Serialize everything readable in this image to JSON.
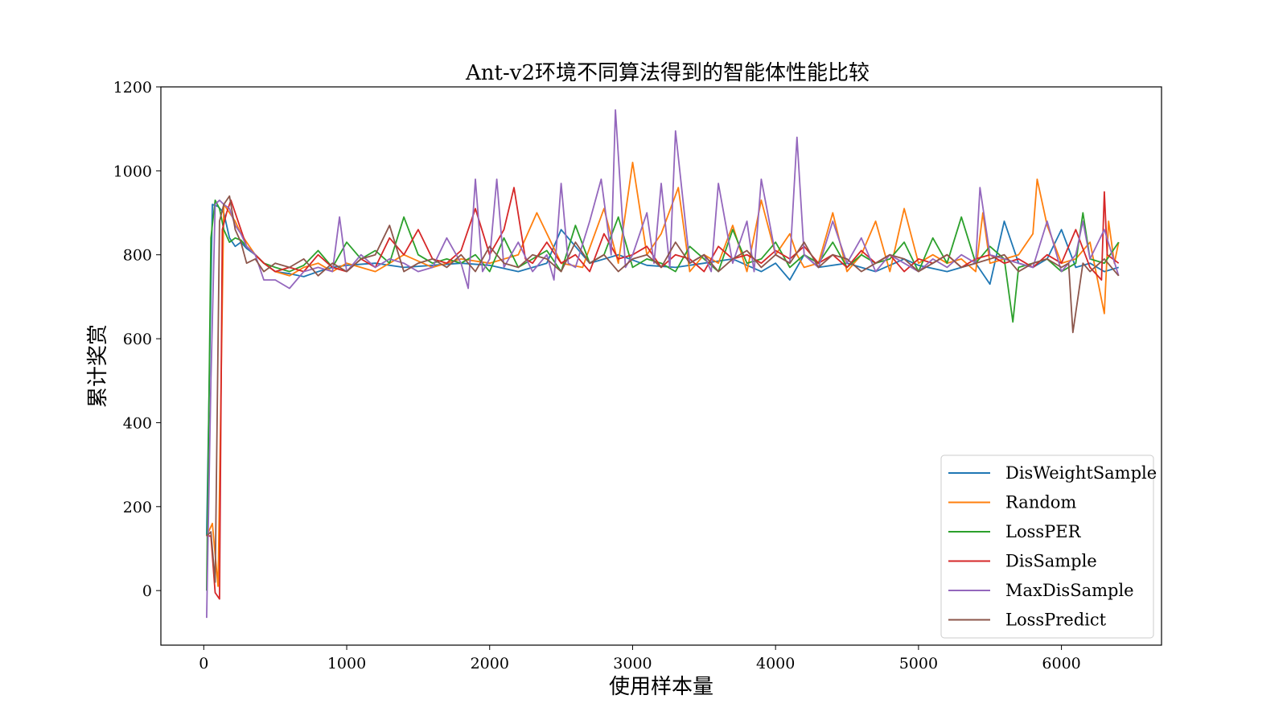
{
  "chart_data": {
    "type": "line",
    "title": "Ant-v2环境不同算法得到的智能体性能比较",
    "xlabel": "使用样本量",
    "ylabel": "累计奖赏",
    "xlim": [
      -300,
      6700
    ],
    "ylim": [
      -130,
      1200
    ],
    "xticks": [
      0,
      1000,
      2000,
      3000,
      4000,
      5000,
      6000
    ],
    "yticks": [
      0,
      200,
      400,
      600,
      800,
      1000,
      1200
    ],
    "grid": false,
    "legend_position": "lower-right",
    "colors": [
      "#1f77b4",
      "#ff7f0e",
      "#2ca02c",
      "#d62728",
      "#9467bd",
      "#8c564b"
    ],
    "series": [
      {
        "name": "DisWeightSample",
        "color": "#1f77b4",
        "x": [
          20,
          60,
          100,
          140,
          180,
          220,
          260,
          300,
          360,
          420,
          500,
          600,
          700,
          800,
          900,
          1000,
          1200,
          1400,
          1600,
          1800,
          2000,
          2200,
          2400,
          2500,
          2700,
          2900,
          3100,
          3300,
          3500,
          3700,
          3900,
          4000,
          4100,
          4200,
          4300,
          4500,
          4700,
          4900,
          5000,
          5200,
          5400,
          5500,
          5600,
          5700,
          5800,
          5900,
          6000,
          6100,
          6200,
          6300,
          6400
        ],
        "values": [
          130,
          920,
          915,
          900,
          840,
          820,
          830,
          815,
          800,
          780,
          760,
          755,
          748,
          760,
          770,
          775,
          780,
          770,
          775,
          780,
          775,
          760,
          780,
          860,
          780,
          800,
          775,
          770,
          780,
          790,
          760,
          780,
          740,
          800,
          770,
          780,
          760,
          790,
          775,
          760,
          780,
          730,
          880,
          780,
          770,
          790,
          860,
          770,
          780,
          760,
          770
        ]
      },
      {
        "name": "Random",
        "color": "#ff7f0e",
        "x": [
          20,
          60,
          100,
          140,
          180,
          220,
          260,
          300,
          360,
          420,
          500,
          600,
          700,
          800,
          900,
          1000,
          1200,
          1400,
          1600,
          1800,
          2000,
          2200,
          2330,
          2500,
          2650,
          2800,
          2900,
          3000,
          3100,
          3200,
          3320,
          3400,
          3500,
          3600,
          3700,
          3800,
          3900,
          4000,
          4100,
          4150,
          4200,
          4300,
          4400,
          4500,
          4600,
          4700,
          4800,
          4900,
          5000,
          5100,
          5200,
          5300,
          5400,
          5450,
          5500,
          5700,
          5800,
          5830,
          5900,
          6000,
          6100,
          6200,
          6300,
          6330,
          6370,
          6400
        ],
        "values": [
          130,
          160,
          10,
          920,
          900,
          880,
          850,
          830,
          800,
          780,
          760,
          750,
          770,
          780,
          760,
          780,
          760,
          800,
          770,
          790,
          780,
          800,
          900,
          780,
          770,
          910,
          780,
          1020,
          800,
          850,
          960,
          760,
          800,
          780,
          870,
          760,
          930,
          800,
          850,
          800,
          770,
          780,
          900,
          760,
          800,
          880,
          760,
          910,
          780,
          800,
          780,
          790,
          760,
          900,
          780,
          800,
          850,
          980,
          870,
          780,
          790,
          830,
          660,
          880,
          780,
          830
        ]
      },
      {
        "name": "LossPER",
        "color": "#2ca02c",
        "x": [
          20,
          50,
          80,
          110,
          140,
          180,
          220,
          260,
          300,
          360,
          420,
          500,
          600,
          700,
          800,
          900,
          1000,
          1100,
          1200,
          1300,
          1400,
          1500,
          1600,
          1700,
          1800,
          1900,
          2000,
          2100,
          2200,
          2300,
          2400,
          2500,
          2600,
          2700,
          2800,
          2900,
          3000,
          3100,
          3200,
          3300,
          3400,
          3500,
          3600,
          3700,
          3800,
          3900,
          4000,
          4100,
          4200,
          4300,
          4400,
          4500,
          4600,
          4700,
          4800,
          4900,
          5000,
          5100,
          5200,
          5300,
          5400,
          5500,
          5600,
          5660,
          5700,
          5800,
          5900,
          6000,
          6100,
          6150,
          6200,
          6300,
          6400
        ],
        "values": [
          0,
          840,
          930,
          910,
          860,
          830,
          840,
          835,
          820,
          800,
          780,
          770,
          760,
          775,
          810,
          770,
          830,
          790,
          810,
          780,
          890,
          800,
          780,
          790,
          780,
          800,
          760,
          840,
          770,
          790,
          810,
          760,
          870,
          780,
          800,
          890,
          770,
          790,
          780,
          760,
          820,
          790,
          760,
          860,
          780,
          790,
          830,
          770,
          800,
          780,
          830,
          770,
          800,
          780,
          790,
          830,
          760,
          840,
          780,
          890,
          780,
          820,
          790,
          640,
          770,
          780,
          790,
          760,
          780,
          900,
          790,
          780,
          830
        ]
      },
      {
        "name": "DisSample",
        "color": "#d62728",
        "x": [
          20,
          50,
          80,
          110,
          130,
          160,
          190,
          220,
          260,
          300,
          360,
          420,
          500,
          600,
          700,
          800,
          900,
          1000,
          1100,
          1200,
          1300,
          1400,
          1500,
          1600,
          1700,
          1800,
          1900,
          2000,
          2100,
          2170,
          2250,
          2300,
          2400,
          2500,
          2600,
          2700,
          2800,
          2900,
          3000,
          3100,
          3200,
          3300,
          3400,
          3500,
          3600,
          3700,
          3800,
          3900,
          4000,
          4100,
          4200,
          4300,
          4400,
          4500,
          4600,
          4700,
          4800,
          4900,
          5000,
          5100,
          5200,
          5300,
          5400,
          5500,
          5600,
          5700,
          5800,
          5900,
          6000,
          6100,
          6200,
          6280,
          6300,
          6320,
          6400
        ],
        "values": [
          130,
          130,
          -5,
          -20,
          860,
          900,
          930,
          900,
          860,
          820,
          800,
          780,
          760,
          770,
          760,
          800,
          770,
          760,
          790,
          770,
          840,
          800,
          860,
          790,
          780,
          810,
          910,
          800,
          860,
          960,
          790,
          780,
          830,
          780,
          800,
          760,
          850,
          790,
          800,
          820,
          770,
          800,
          790,
          760,
          820,
          790,
          800,
          780,
          810,
          790,
          820,
          780,
          800,
          770,
          810,
          780,
          800,
          760,
          790,
          780,
          800,
          770,
          790,
          800,
          780,
          790,
          770,
          800,
          780,
          860,
          770,
          740,
          950,
          800,
          780
        ]
      },
      {
        "name": "MaxDisSample",
        "color": "#9467bd",
        "x": [
          20,
          50,
          80,
          110,
          140,
          180,
          220,
          260,
          300,
          360,
          420,
          500,
          600,
          700,
          800,
          900,
          950,
          1000,
          1050,
          1100,
          1200,
          1300,
          1400,
          1500,
          1600,
          1700,
          1800,
          1850,
          1900,
          1950,
          2000,
          2050,
          2100,
          2150,
          2200,
          2300,
          2400,
          2450,
          2500,
          2550,
          2600,
          2700,
          2780,
          2850,
          2880,
          2950,
          3000,
          3100,
          3150,
          3200,
          3260,
          3300,
          3400,
          3500,
          3550,
          3600,
          3700,
          3800,
          3850,
          3900,
          4000,
          4100,
          4150,
          4200,
          4300,
          4400,
          4500,
          4600,
          4700,
          4800,
          4900,
          5000,
          5100,
          5200,
          5300,
          5400,
          5430,
          5500,
          5600,
          5700,
          5800,
          5900,
          6000,
          6100,
          6150,
          6200,
          6300,
          6400
        ],
        "values": [
          -65,
          500,
          920,
          930,
          920,
          910,
          870,
          850,
          820,
          800,
          740,
          740,
          720,
          760,
          770,
          760,
          890,
          760,
          780,
          800,
          770,
          790,
          780,
          760,
          770,
          840,
          780,
          720,
          980,
          760,
          790,
          980,
          770,
          800,
          830,
          760,
          800,
          740,
          970,
          780,
          770,
          880,
          980,
          800,
          1145,
          770,
          800,
          900,
          780,
          970,
          770,
          1095,
          780,
          800,
          760,
          970,
          780,
          880,
          760,
          980,
          800,
          780,
          1080,
          800,
          770,
          880,
          780,
          840,
          760,
          800,
          780,
          760,
          790,
          770,
          800,
          780,
          960,
          800,
          790,
          780,
          770,
          880,
          760,
          800,
          880,
          790,
          860,
          750
        ]
      },
      {
        "name": "LossPredict",
        "color": "#8c564b",
        "x": [
          20,
          50,
          80,
          110,
          140,
          180,
          220,
          260,
          300,
          360,
          420,
          500,
          600,
          700,
          800,
          900,
          1000,
          1100,
          1200,
          1300,
          1400,
          1500,
          1600,
          1700,
          1800,
          1900,
          2000,
          2100,
          2200,
          2300,
          2400,
          2500,
          2600,
          2700,
          2800,
          2900,
          3000,
          3100,
          3200,
          3300,
          3400,
          3500,
          3600,
          3700,
          3800,
          3900,
          4000,
          4100,
          4200,
          4300,
          4400,
          4500,
          4600,
          4700,
          4800,
          4900,
          5000,
          5100,
          5200,
          5300,
          5400,
          5500,
          5600,
          5700,
          5800,
          5900,
          6000,
          6050,
          6080,
          6150,
          6200,
          6300,
          6400
        ],
        "values": [
          130,
          140,
          20,
          880,
          920,
          940,
          860,
          830,
          780,
          790,
          760,
          780,
          770,
          790,
          750,
          780,
          760,
          790,
          800,
          870,
          760,
          780,
          790,
          770,
          800,
          760,
          820,
          780,
          770,
          800,
          790,
          760,
          830,
          780,
          800,
          760,
          790,
          800,
          770,
          830,
          780,
          800,
          760,
          790,
          810,
          770,
          800,
          780,
          830,
          770,
          800,
          790,
          760,
          780,
          800,
          790,
          760,
          780,
          800,
          770,
          780,
          790,
          800,
          760,
          780,
          790,
          770,
          780,
          615,
          780,
          760,
          790,
          750
        ]
      }
    ]
  }
}
